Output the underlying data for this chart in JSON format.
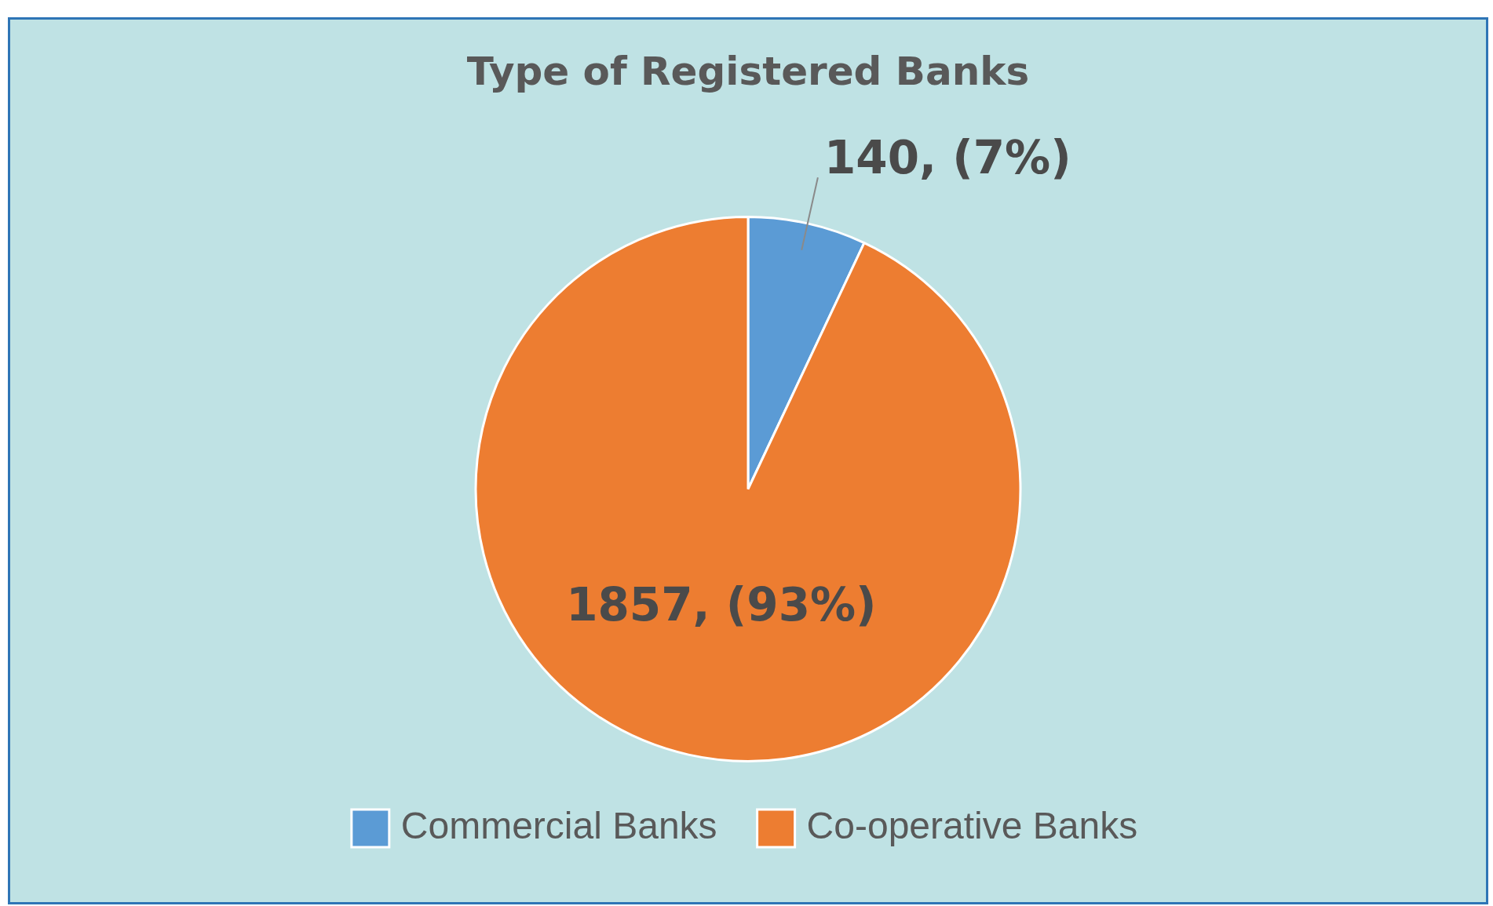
{
  "chart_data": {
    "type": "pie",
    "title": "Type of Registered Banks",
    "categories": [
      "Commercial Banks",
      "Co-operative Banks"
    ],
    "values": [
      140,
      1857
    ],
    "colors": [
      "#5b9bd5",
      "#ed7d31"
    ],
    "value_labels": [
      "140, (7%)",
      "1857, (93%)"
    ],
    "legend": "bottom"
  }
}
